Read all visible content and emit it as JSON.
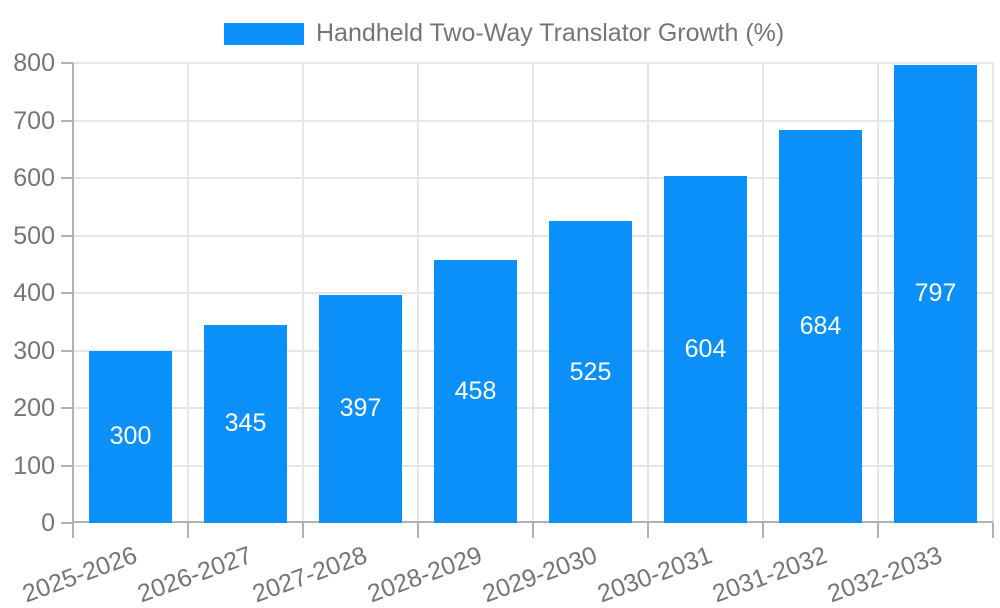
{
  "colors": {
    "bar": "#0a90f8",
    "grid": "#e6e6e6",
    "axis": "#b2b2b2",
    "text": "#757575",
    "value-text": "#ffffff"
  },
  "chart_data": {
    "type": "bar",
    "title": "Handheld Two-Way Translator Growth (%)",
    "legend_entries": [
      "Handheld Two-Way Translator Growth (%)"
    ],
    "legend_position": "top-center",
    "categories": [
      "2025-2026",
      "2026-2027",
      "2027-2028",
      "2028-2029",
      "2029-2030",
      "2030-2031",
      "2031-2032",
      "2032-2033"
    ],
    "values": [
      300,
      345,
      397,
      458,
      525,
      604,
      684,
      797
    ],
    "value_labels_shown": true,
    "xlabel": "",
    "ylabel": "",
    "ylim": [
      0,
      800
    ],
    "yticks": [
      0,
      100,
      200,
      300,
      400,
      500,
      600,
      700,
      800
    ],
    "grid": true,
    "x_label_rotation_deg": -20,
    "bar_color": "#0a90f8"
  }
}
